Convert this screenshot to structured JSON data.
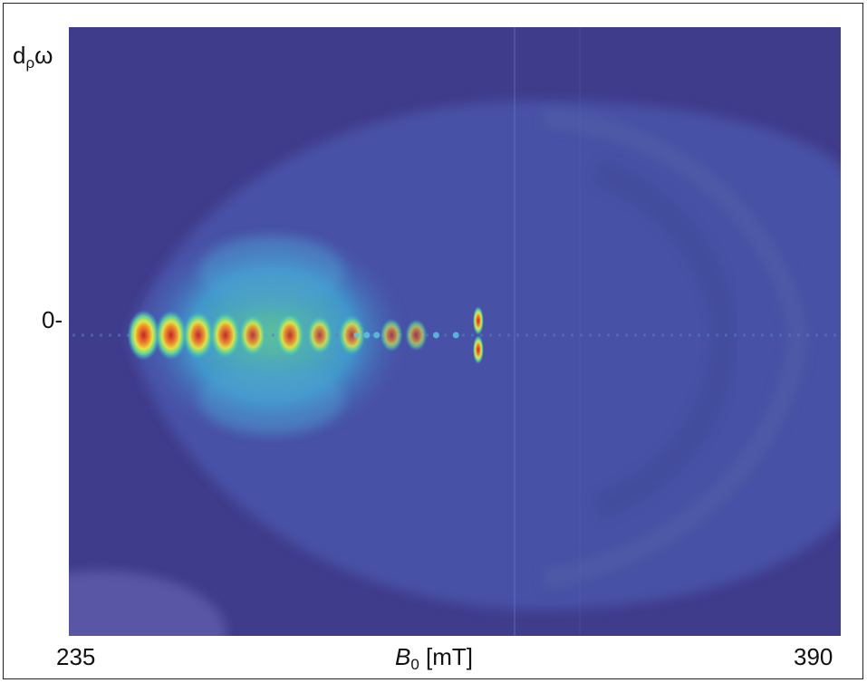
{
  "chart_data": {
    "type": "heatmap",
    "title": "",
    "xlabel": {
      "symbol": "B",
      "subscript": "0",
      "unit": " [mT]"
    },
    "ylabel": {
      "symbol": "d",
      "subscript": "ρ",
      "rest": "ω"
    },
    "xlim": [
      235,
      390
    ],
    "x_ticks": [
      "235",
      "390"
    ],
    "y_ticks": [
      "0-"
    ],
    "colormap": [
      "#3d3e8e",
      "#4b5fb8",
      "#3fa8d6",
      "#5fd39a",
      "#e6e640",
      "#f08a2a",
      "#c8202a"
    ],
    "background_color": "#403c8c",
    "features": [
      {
        "name": "main-lobe",
        "x_range": [
          245,
          305
        ],
        "y_extent": 0.38
      },
      {
        "name": "side-line",
        "x": 316,
        "y_extent": 0.06
      },
      {
        "name": "outer-shell",
        "x_range": [
          285,
          390
        ],
        "y_extent": 0.85
      }
    ],
    "peaks": [
      {
        "x": 249.0,
        "intensity": 1.0
      },
      {
        "x": 254.5,
        "intensity": 0.95
      },
      {
        "x": 260.0,
        "intensity": 0.9
      },
      {
        "x": 265.5,
        "intensity": 0.88
      },
      {
        "x": 271.0,
        "intensity": 0.7
      },
      {
        "x": 278.5,
        "intensity": 0.8
      },
      {
        "x": 284.5,
        "intensity": 0.55
      },
      {
        "x": 291.0,
        "intensity": 0.6
      },
      {
        "x": 299.0,
        "intensity": 0.3
      },
      {
        "x": 304.0,
        "intensity": 0.25
      },
      {
        "x": 316.5,
        "intensity": 0.9
      }
    ]
  }
}
